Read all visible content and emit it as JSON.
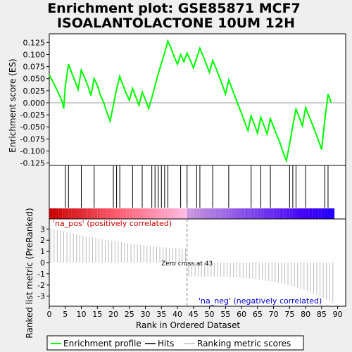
{
  "chart_data": {
    "type": "line",
    "title_line1": "Enrichment plot: GSE85871 MCF7",
    "title_line2": "ISOALANTOLACTONE 10UM 12H",
    "es_panel": {
      "ylabel": "Enrichment score (ES)",
      "ylim": [
        -0.13,
        0.143
      ],
      "yticks": [
        -0.125,
        -0.1,
        -0.075,
        -0.05,
        -0.025,
        0.0,
        0.025,
        0.05,
        0.075,
        0.1,
        0.125
      ],
      "ytick_labels": [
        "-0.125",
        "-0.100",
        "-0.075",
        "-0.050",
        "-0.025",
        "0.000",
        "0.025",
        "0.050",
        "0.075",
        "0.100",
        "0.125"
      ],
      "series": {
        "name": "Enrichment profile",
        "color": "#00ff00",
        "points": [
          [
            0,
            0.058
          ],
          [
            1,
            0.045
          ],
          [
            2,
            0.032
          ],
          [
            3,
            0.018
          ],
          [
            4,
            0.003
          ],
          [
            4.5,
            -0.012
          ],
          [
            5,
            0.035
          ],
          [
            6,
            0.08
          ],
          [
            7,
            0.062
          ],
          [
            8,
            0.045
          ],
          [
            9,
            0.028
          ],
          [
            10,
            0.068
          ],
          [
            11,
            0.052
          ],
          [
            12,
            0.036
          ],
          [
            13,
            0.015
          ],
          [
            14,
            0.05
          ],
          [
            15,
            0.036
          ],
          [
            16,
            0.015
          ],
          [
            17,
            0.0
          ],
          [
            18,
            -0.02
          ],
          [
            19,
            -0.038
          ],
          [
            20,
            -0.005
          ],
          [
            21,
            0.028
          ],
          [
            22,
            0.055
          ],
          [
            23,
            0.036
          ],
          [
            24,
            0.02
          ],
          [
            25,
            0.005
          ],
          [
            26,
            0.03
          ],
          [
            27,
            0.012
          ],
          [
            28,
            -0.005
          ],
          [
            29,
            0.022
          ],
          [
            30,
            0.007
          ],
          [
            31,
            -0.012
          ],
          [
            32,
            0.01
          ],
          [
            33,
            0.035
          ],
          [
            34,
            0.06
          ],
          [
            35,
            0.082
          ],
          [
            36,
            0.103
          ],
          [
            37,
            0.128
          ],
          [
            38,
            0.113
          ],
          [
            39,
            0.095
          ],
          [
            40,
            0.08
          ],
          [
            41,
            0.1
          ],
          [
            42,
            0.085
          ],
          [
            43,
            0.103
          ],
          [
            44,
            0.088
          ],
          [
            45,
            0.072
          ],
          [
            46,
            0.093
          ],
          [
            47,
            0.113
          ],
          [
            48,
            0.097
          ],
          [
            49,
            0.08
          ],
          [
            50,
            0.063
          ],
          [
            51,
            0.088
          ],
          [
            52,
            0.072
          ],
          [
            53,
            0.055
          ],
          [
            54,
            0.037
          ],
          [
            55,
            0.018
          ],
          [
            56,
            0.047
          ],
          [
            57,
            0.03
          ],
          [
            58,
            0.012
          ],
          [
            59,
            -0.005
          ],
          [
            60,
            -0.022
          ],
          [
            61,
            -0.04
          ],
          [
            62,
            -0.058
          ],
          [
            63,
            -0.027
          ],
          [
            64,
            -0.045
          ],
          [
            65,
            -0.063
          ],
          [
            66,
            -0.03
          ],
          [
            67,
            -0.047
          ],
          [
            68,
            -0.065
          ],
          [
            69,
            -0.033
          ],
          [
            70,
            -0.05
          ],
          [
            71,
            -0.067
          ],
          [
            72,
            -0.083
          ],
          [
            73,
            -0.103
          ],
          [
            74,
            -0.12
          ],
          [
            75,
            -0.085
          ],
          [
            76,
            -0.048
          ],
          [
            77,
            -0.013
          ],
          [
            78,
            -0.03
          ],
          [
            79,
            -0.048
          ],
          [
            80,
            -0.01
          ],
          [
            81,
            -0.027
          ],
          [
            82,
            -0.043
          ],
          [
            83,
            -0.06
          ],
          [
            84,
            -0.078
          ],
          [
            85,
            -0.097
          ],
          [
            86,
            -0.035
          ],
          [
            87,
            0.018
          ],
          [
            88,
            0.0
          ]
        ]
      }
    },
    "hits": [
      0,
      5,
      6,
      10,
      14,
      20,
      21,
      22,
      26,
      29,
      32,
      33,
      34,
      35,
      36,
      37,
      41,
      43,
      46,
      47,
      51,
      56,
      63,
      66,
      69,
      75,
      76,
      77,
      80,
      86,
      87
    ],
    "rank_panel": {
      "ylabel": "Ranked list metric (PreRanked)",
      "xlabel": "Rank in Ordered Dataset",
      "ylim": [
        -3.9,
        3.9
      ],
      "yticks": [
        -3,
        -2,
        -1,
        0,
        1,
        2,
        3
      ],
      "ytick_labels": [
        "-3",
        "-2",
        "-1",
        "0",
        "1",
        "2",
        "3"
      ],
      "xlim": [
        0,
        92.5
      ],
      "xticks": [
        0,
        5,
        10,
        15,
        20,
        25,
        30,
        35,
        40,
        45,
        50,
        55,
        60,
        65,
        70,
        75,
        80,
        85,
        90
      ],
      "xtick_labels": [
        "0",
        "5",
        "10",
        "15",
        "20",
        "25",
        "30",
        "35",
        "40",
        "45",
        "50",
        "55",
        "60",
        "65",
        "70",
        "75",
        "80",
        "85",
        "90"
      ],
      "metric_start": 3.05,
      "metric_plateau_pos": 1.25,
      "metric_plateau_neg": -1.25,
      "metric_end": -3.6,
      "n_ranks": 89,
      "zero_cross_rank": 43,
      "zero_cross_text": "Zero cross at 43",
      "pos_label": "'na_pos' (positively correlated)",
      "neg_label": "'na_neg' (negatively correlated)",
      "pos_label_color": "#cc0000",
      "neg_label_color": "#0000cc"
    },
    "legend": [
      {
        "label": "Enrichment profile",
        "color": "#00ff00"
      },
      {
        "label": "Hits",
        "color": "#000000"
      },
      {
        "label": "Ranking metric scores",
        "color": "#bbbbbb"
      }
    ]
  }
}
